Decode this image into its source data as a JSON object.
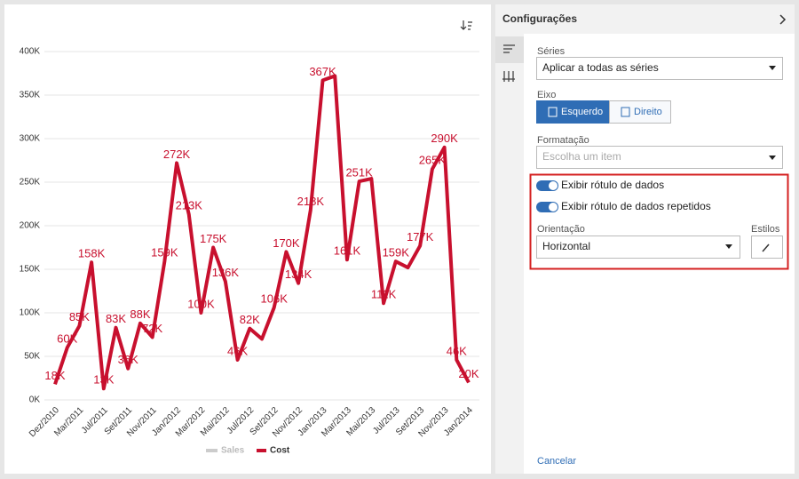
{
  "chart_data": {
    "type": "line",
    "categories": [
      "Dez/2010",
      null,
      "Mar/2011",
      null,
      "Jul/2011",
      null,
      "Set/2011",
      null,
      "Nov/2011",
      null,
      "Jan/2012",
      null,
      "Mar/2012",
      null,
      "Mai/2012",
      null,
      "Jul/2012",
      null,
      "Set/2012",
      null,
      "Nov/2012",
      null,
      "Jan/2013",
      null,
      "Mar/2013",
      null,
      "Mai/2013",
      null,
      "Jul/2013",
      null,
      "Set/2013",
      null,
      "Nov/2013",
      null,
      "Jan/2014"
    ],
    "series": [
      {
        "name": "Cost",
        "color": "#c8102e",
        "values": [
          18000,
          60000,
          85000,
          158000,
          13000,
          83000,
          36000,
          88000,
          72000,
          159000,
          272000,
          213000,
          100000,
          175000,
          136000,
          46000,
          82000,
          70000,
          106000,
          170000,
          134000,
          218000,
          367000,
          372000,
          161000,
          251000,
          254000,
          111000,
          159000,
          152000,
          177000,
          265000,
          290000,
          46000,
          20000
        ],
        "value_labels": [
          "18K",
          "60K",
          "85K",
          "158K",
          "13K",
          "83K",
          "36K",
          "88K",
          "72K",
          "159K",
          "272K",
          "213K",
          "100K",
          "175K",
          "136K",
          "46K",
          "82K",
          null,
          "106K",
          "170K",
          "134K",
          "218K",
          "367K",
          null,
          "161K",
          "251K",
          null,
          "111K",
          "159K",
          null,
          "177K",
          "265K",
          "290K",
          "46K",
          "20K"
        ]
      }
    ],
    "hidden_series": [
      {
        "name": "Sales",
        "color": "#cccccc"
      }
    ],
    "ylim": [
      0,
      400000
    ],
    "yticks": [
      {
        "value": 0,
        "label": "0K"
      },
      {
        "value": 50000,
        "label": "50K"
      },
      {
        "value": 100000,
        "label": "100K"
      },
      {
        "value": 150000,
        "label": "150K"
      },
      {
        "value": 200000,
        "label": "200K"
      },
      {
        "value": 250000,
        "label": "250K"
      },
      {
        "value": 300000,
        "label": "300K"
      },
      {
        "value": 350000,
        "label": "350K"
      },
      {
        "value": 400000,
        "label": "400K"
      }
    ],
    "grid": true
  },
  "panel": {
    "title": "Configurações",
    "series_label": "Séries",
    "series_value": "Aplicar a todas as séries",
    "axis_label": "Eixo",
    "axis_left": "Esquerdo",
    "axis_right": "Direito",
    "format_label": "Formatação",
    "format_placeholder": "Escolha um item",
    "toggle1": "Exibir rótulo de dados",
    "toggle2": "Exibir rótulo de dados repetidos",
    "orientation_label": "Orientação",
    "orientation_value": "Horizontal",
    "styles_label": "Estilos",
    "cancel": "Cancelar"
  }
}
